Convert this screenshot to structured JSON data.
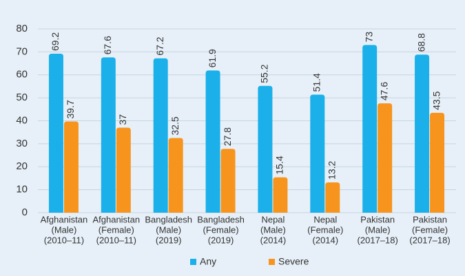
{
  "chart_data": {
    "type": "bar",
    "categories": [
      [
        "Afghanistan",
        "(Male)",
        "(2010–11)"
      ],
      [
        "Afghanistan",
        "(Female)",
        "(2010–11)"
      ],
      [
        "Bangladesh",
        "(Male)",
        "(2019)"
      ],
      [
        "Bangladesh",
        "(Female)",
        "(2019)"
      ],
      [
        "Nepal",
        "(Male)",
        "(2014)"
      ],
      [
        "Nepal",
        "(Female)",
        "(2014)"
      ],
      [
        "Pakistan",
        "(Male)",
        "(2017–18)"
      ],
      [
        "Pakistan",
        "(Female)",
        "(2017–18)"
      ]
    ],
    "series": [
      {
        "name": "Any",
        "color": "#1bb0e9",
        "values": [
          69.2,
          67.6,
          67.2,
          61.9,
          55.2,
          51.4,
          73,
          68.8
        ]
      },
      {
        "name": "Severe",
        "color": "#f7941d",
        "values": [
          39.7,
          37,
          32.5,
          27.8,
          15.4,
          13.2,
          47.6,
          43.5
        ]
      }
    ],
    "ylim": [
      0,
      80
    ],
    "yticks": [
      0,
      10,
      20,
      30,
      40,
      50,
      60,
      70,
      80
    ],
    "grid": true,
    "legend": "bottom"
  }
}
